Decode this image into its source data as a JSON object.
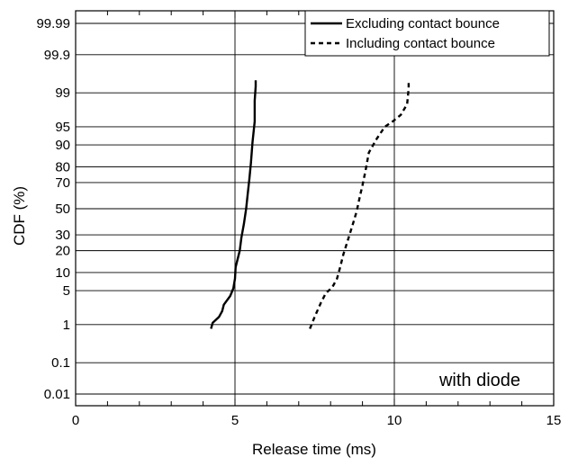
{
  "chart_data": {
    "type": "line",
    "xlabel": "Release time (ms)",
    "ylabel": "CDF (%)",
    "xlim": [
      0,
      15
    ],
    "x_ticks": [
      "0",
      "5",
      "10",
      "15"
    ],
    "y_scale": "probability",
    "y_ticks": [
      "0.01",
      "0.1",
      "1",
      "5",
      "10",
      "20",
      "30",
      "50",
      "70",
      "80",
      "90",
      "95",
      "99",
      "99.9",
      "99.99"
    ],
    "y_tick_values": [
      0.01,
      0.1,
      1,
      5,
      10,
      20,
      30,
      50,
      70,
      80,
      90,
      95,
      99,
      99.9,
      99.99
    ],
    "grid": true,
    "legend_position": "top-right",
    "annotation": "with diode",
    "series": [
      {
        "name": "Excluding contact bounce",
        "style": "solid",
        "color": "#000000",
        "points": [
          [
            4.25,
            0.8
          ],
          [
            4.3,
            1.1
          ],
          [
            4.5,
            1.5
          ],
          [
            4.6,
            2.0
          ],
          [
            4.65,
            2.7
          ],
          [
            4.85,
            4.0
          ],
          [
            4.95,
            5.5
          ],
          [
            5.0,
            8.0
          ],
          [
            5.02,
            12.0
          ],
          [
            5.15,
            20.0
          ],
          [
            5.2,
            28.0
          ],
          [
            5.28,
            38.0
          ],
          [
            5.35,
            50.0
          ],
          [
            5.4,
            62.0
          ],
          [
            5.45,
            72.0
          ],
          [
            5.5,
            82.0
          ],
          [
            5.55,
            91.0
          ],
          [
            5.62,
            96.0
          ],
          [
            5.62,
            98.5
          ],
          [
            5.65,
            99.3
          ],
          [
            5.65,
            99.5
          ]
        ]
      },
      {
        "name": "Including contact bounce",
        "style": "dashed",
        "color": "#000000",
        "points": [
          [
            7.35,
            0.8
          ],
          [
            7.5,
            1.5
          ],
          [
            7.7,
            3.0
          ],
          [
            7.85,
            4.5
          ],
          [
            8.05,
            5.7
          ],
          [
            8.2,
            8.0
          ],
          [
            8.3,
            12.0
          ],
          [
            8.4,
            18.0
          ],
          [
            8.55,
            27.0
          ],
          [
            8.7,
            38.0
          ],
          [
            8.82,
            48.0
          ],
          [
            8.92,
            60.0
          ],
          [
            9.0,
            68.0
          ],
          [
            9.1,
            78.0
          ],
          [
            9.2,
            87.0
          ],
          [
            9.45,
            92.0
          ],
          [
            9.7,
            95.0
          ],
          [
            9.95,
            96.0
          ],
          [
            10.2,
            97.0
          ],
          [
            10.4,
            98.2
          ],
          [
            10.45,
            99.2
          ],
          [
            10.45,
            99.5
          ]
        ]
      }
    ]
  }
}
